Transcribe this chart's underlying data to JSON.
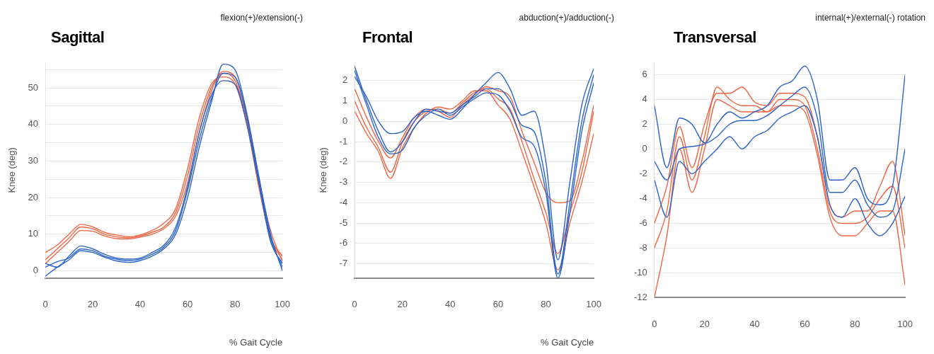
{
  "chart_data": [
    {
      "type": "line",
      "title": "Sagittal",
      "subtitle": "flexion(+)/extension(-)",
      "xlabel": "% Gait Cycle",
      "ylabel": "Knee (deg)",
      "grid": "y",
      "legend": false,
      "marker": "none",
      "line_style": "solid",
      "x": [
        0,
        5,
        10,
        15,
        20,
        25,
        30,
        35,
        40,
        45,
        50,
        55,
        60,
        65,
        70,
        75,
        80,
        85,
        90,
        95,
        100
      ],
      "xlim": [
        0,
        100
      ],
      "xticks": [
        0,
        20,
        40,
        60,
        80,
        100
      ],
      "ylim": [
        -2,
        57
      ],
      "yticks": [
        0,
        {
          "value": 5,
          "label": null
        },
        10,
        {
          "value": 15,
          "label": null
        },
        20,
        {
          "value": 25,
          "label": null
        },
        30,
        {
          "value": 35,
          "label": null
        },
        40,
        {
          "value": 45,
          "label": null
        },
        50,
        {
          "value": 55,
          "label": null
        }
      ],
      "series": [
        {
          "color": "#2b63c9",
          "values": [
            1,
            2.5,
            3.5,
            6,
            5.5,
            4,
            3.2,
            2.8,
            3.2,
            4.5,
            6.5,
            11,
            22,
            36,
            47,
            54,
            53,
            42,
            25,
            9,
            1
          ]
        },
        {
          "color": "#2b63c9",
          "values": [
            -1.5,
            1,
            3,
            5.5,
            5,
            3.7,
            2.7,
            2.3,
            2.8,
            4,
            6,
            10,
            20,
            34,
            46,
            56.5,
            55,
            43,
            26,
            10,
            0
          ]
        },
        {
          "color": "#2b63c9",
          "values": [
            2,
            1,
            4,
            6.8,
            6,
            4.5,
            3.5,
            3.2,
            3.5,
            5,
            7,
            12,
            23,
            38,
            48,
            52,
            51,
            40,
            24,
            8,
            2
          ]
        },
        {
          "color": "#ee6644",
          "values": [
            3,
            6,
            9,
            12,
            11.5,
            10,
            9.3,
            9,
            9.5,
            10.5,
            12,
            16,
            26,
            40,
            50,
            54,
            52,
            41,
            24,
            9,
            3
          ]
        },
        {
          "color": "#ee6644",
          "values": [
            5,
            7,
            10,
            12.7,
            12,
            10.5,
            9.8,
            9.3,
            9.8,
            11,
            13,
            17,
            28,
            42,
            51,
            53,
            51,
            40,
            23,
            9,
            4
          ]
        },
        {
          "color": "#ee6644",
          "values": [
            2,
            5,
            8,
            11,
            10.8,
            9.5,
            8.8,
            8.7,
            9.2,
            10,
            11.5,
            15,
            24,
            38,
            49,
            54.5,
            53,
            42,
            25,
            11,
            2.5
          ]
        }
      ]
    },
    {
      "type": "line",
      "title": "Frontal",
      "subtitle": "abduction(+)/adduction(-)",
      "xlabel": "% Gait Cycle",
      "ylabel": "Knee (deg)",
      "grid": "y",
      "legend": false,
      "marker": "none",
      "line_style": "solid",
      "x": [
        0,
        5,
        10,
        15,
        20,
        25,
        30,
        35,
        40,
        45,
        50,
        55,
        60,
        65,
        70,
        75,
        80,
        85,
        90,
        95,
        100
      ],
      "xlim": [
        0,
        100
      ],
      "xticks": [
        0,
        20,
        40,
        60,
        80,
        100
      ],
      "ylim": [
        -7.7,
        2.9
      ],
      "yticks": [
        -7,
        -6,
        -5,
        -4,
        -3,
        -2,
        -1,
        0,
        1,
        2
      ],
      "series": [
        {
          "color": "#2b63c9",
          "values": [
            2.7,
            1,
            -0.5,
            -1.5,
            -1,
            0,
            0.6,
            0.5,
            0.4,
            0.8,
            1.2,
            1.6,
            1.6,
            1,
            -0.2,
            -0.5,
            -3,
            -7.5,
            -4,
            0,
            2.3
          ]
        },
        {
          "color": "#2b63c9",
          "values": [
            2.2,
            1.2,
            0,
            -0.6,
            -0.5,
            0.2,
            0.5,
            0.3,
            0.1,
            0.6,
            1.3,
            1.9,
            2.4,
            1.6,
            0.3,
            0.5,
            -2,
            -6.8,
            -3,
            0.8,
            2.6
          ]
        },
        {
          "color": "#2b63c9",
          "values": [
            2.5,
            0.8,
            -0.8,
            -1.6,
            -1.4,
            -0.3,
            0.3,
            0.6,
            0.3,
            0.7,
            1.1,
            1.4,
            1.3,
            0.5,
            -0.8,
            -1.2,
            -3.5,
            -7.7,
            -4.5,
            -0.5,
            1.9
          ]
        },
        {
          "color": "#ee6644",
          "values": [
            1,
            -0.3,
            -1.3,
            -2.5,
            -1,
            0,
            0.5,
            0.6,
            0.4,
            0.9,
            1.4,
            1.6,
            1.1,
            0.6,
            -1,
            -2.8,
            -4.5,
            -6.5,
            -4.5,
            -2.5,
            0.5
          ]
        },
        {
          "color": "#ee6644",
          "values": [
            1.6,
            0.2,
            -1,
            -1.8,
            -0.8,
            0.2,
            0.6,
            0.5,
            0.2,
            0.8,
            1.3,
            1.7,
            1.5,
            1.2,
            -0.5,
            -2,
            -3.5,
            -4,
            -3.9,
            -2,
            0.8
          ]
        },
        {
          "color": "#ee6644",
          "values": [
            0.5,
            -0.6,
            -1.5,
            -2.8,
            -1.3,
            -0.3,
            0.4,
            0.7,
            0.6,
            1,
            1.5,
            1.5,
            0.8,
            0.1,
            -1.5,
            -3.2,
            -5,
            -7.3,
            -5,
            -3,
            -0.6
          ]
        }
      ]
    },
    {
      "type": "line",
      "title": "Transversal",
      "subtitle": "internal(+)/external(-) rotation",
      "grid": "y",
      "legend": false,
      "marker": "none",
      "line_style": "solid",
      "x": [
        0,
        5,
        10,
        15,
        20,
        25,
        30,
        35,
        40,
        45,
        50,
        55,
        60,
        65,
        70,
        75,
        80,
        85,
        90,
        95,
        100
      ],
      "xlim": [
        0,
        100
      ],
      "xticks": [
        0,
        20,
        40,
        60,
        80,
        100
      ],
      "ylim": [
        -12,
        7
      ],
      "yticks": [
        -12,
        -10,
        -8,
        -6,
        -4,
        -2,
        0,
        2,
        4,
        6
      ],
      "series": [
        {
          "color": "#2b63c9",
          "values": [
            -1,
            -2.5,
            0,
            0.2,
            0.4,
            1,
            2,
            2.3,
            2.3,
            2.7,
            3.5,
            4.3,
            5,
            2.5,
            -3.5,
            -3.5,
            -2.5,
            -4.5,
            -5.5,
            -5,
            0
          ]
        },
        {
          "color": "#2b63c9",
          "values": [
            3.5,
            -1.5,
            2.5,
            2,
            0.5,
            2,
            3,
            2.5,
            3,
            3.5,
            5,
            5.5,
            6.7,
            4,
            -2.5,
            -2.5,
            -1.5,
            -4,
            -4.5,
            -3,
            6
          ]
        },
        {
          "color": "#2b63c9",
          "values": [
            -2.5,
            -5.5,
            -1,
            -2,
            -1,
            0,
            1,
            0,
            1,
            1.5,
            2.5,
            3,
            3.5,
            1,
            -4.5,
            -5.5,
            -4,
            -6,
            -7,
            -6,
            -3.8
          ]
        },
        {
          "color": "#ee6644",
          "values": [
            -8,
            -5,
            1,
            -2.5,
            1,
            5,
            4,
            3.5,
            3.5,
            3,
            4,
            4,
            3.5,
            0,
            -5,
            -6,
            -6,
            -5.5,
            -4,
            -3,
            -8
          ]
        },
        {
          "color": "#ee6644",
          "values": [
            -6,
            -3,
            1.8,
            -1.5,
            2,
            4.5,
            4.5,
            5,
            3.8,
            3.5,
            4.5,
            4.5,
            4.2,
            1,
            -4.5,
            -5.5,
            -5,
            -5,
            -3,
            -1,
            -7
          ]
        },
        {
          "color": "#ee6644",
          "values": [
            -12,
            -7,
            0,
            -3.5,
            0,
            4,
            3.5,
            3,
            3,
            3,
            3.5,
            3.5,
            3,
            -0.5,
            -5.5,
            -7,
            -7,
            -6,
            -5,
            -5,
            -11
          ]
        }
      ]
    }
  ]
}
